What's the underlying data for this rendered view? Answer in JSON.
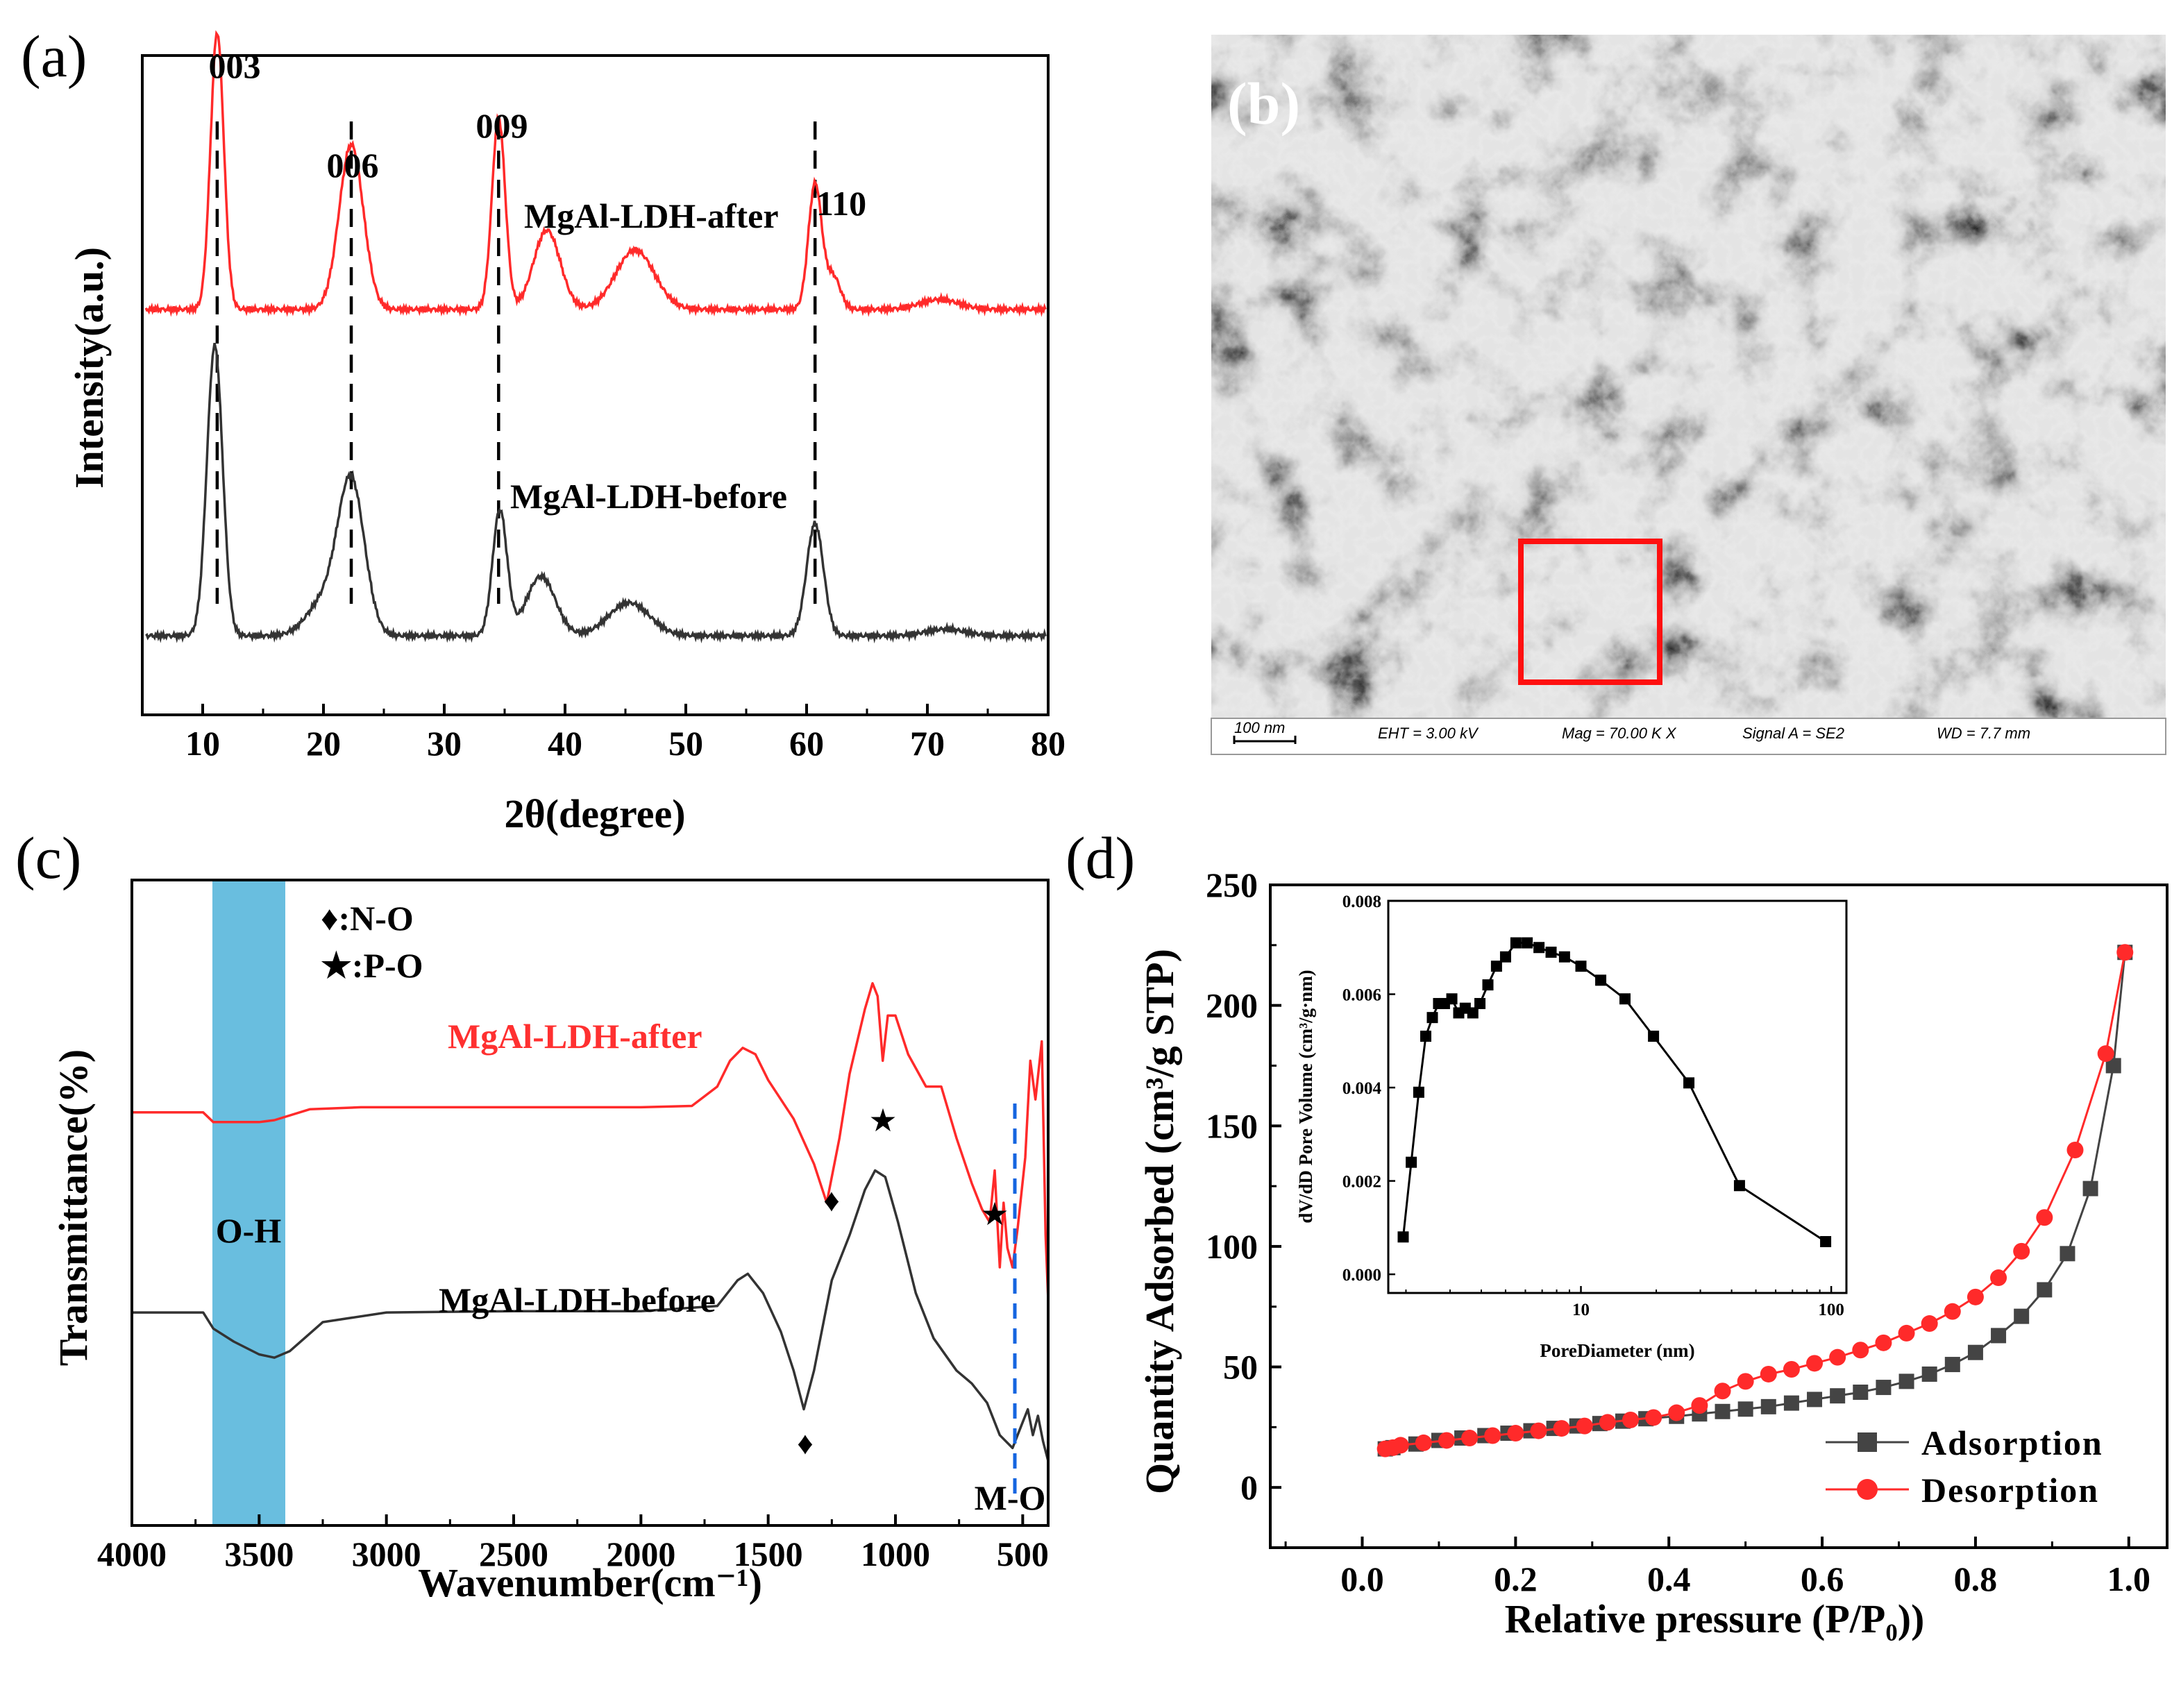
{
  "chart_data": [
    {
      "panel": "(a)",
      "type": "line",
      "xlabel": "2θ(degree)",
      "ylabel": "Intensity(a.u.)",
      "xlim": [
        5,
        80
      ],
      "xticks": [
        "10",
        "20",
        "30",
        "40",
        "50",
        "60",
        "70",
        "80"
      ],
      "peak_labels": [
        {
          "text": "003",
          "x": 11.2
        },
        {
          "text": "006",
          "x": 22.3
        },
        {
          "text": "009",
          "x": 34.5
        },
        {
          "text": "110",
          "x": 60.7
        }
      ],
      "series": [
        {
          "name": "MgAl-LDH-after",
          "color": "#ff2a2a",
          "baseline": 0.615,
          "peaks": [
            [
              11.2,
              0.42,
              0.55
            ],
            [
              22.3,
              0.25,
              1.0
            ],
            [
              34.5,
              0.29,
              0.55
            ],
            [
              38.5,
              0.12,
              1.1
            ],
            [
              45.8,
              0.09,
              1.6
            ],
            [
              60.7,
              0.19,
              0.55
            ],
            [
              62.2,
              0.05,
              0.6
            ],
            [
              71.0,
              0.015,
              1.6
            ]
          ]
        },
        {
          "name": "MgAl-LDH-before",
          "color": "#333333",
          "baseline": 0.12,
          "peaks": [
            [
              11.0,
              0.44,
              0.65
            ],
            [
              20.0,
              0.05,
              1.4
            ],
            [
              22.3,
              0.23,
              1.1
            ],
            [
              34.6,
              0.19,
              0.6
            ],
            [
              38.0,
              0.09,
              1.2
            ],
            [
              45.3,
              0.05,
              1.7
            ],
            [
              60.7,
              0.17,
              0.7
            ],
            [
              71.5,
              0.01,
              1.6
            ]
          ]
        }
      ]
    },
    {
      "panel": "(b)",
      "type": "image",
      "scale_bar": "100 nm",
      "info": [
        "EHT =  3.00 kV",
        "Mag =   70.00 K X",
        "Signal A = SE2",
        "WD =  7.7 mm"
      ]
    },
    {
      "panel": "(c)",
      "type": "line",
      "xlabel": "Wavenumber(cm⁻¹)",
      "ylabel": "Transmittance(%)",
      "xlim": [
        4000,
        400
      ],
      "xticks": [
        "4000",
        "3500",
        "3000",
        "2500",
        "2000",
        "1500",
        "1000",
        "500"
      ],
      "band_label": "O-H",
      "band_range": [
        3700,
        3420
      ],
      "marker_legend": [
        "♦:N-O",
        "★:P-O"
      ],
      "mo_label": "M-O",
      "mo_line_x": 540,
      "series": [
        {
          "name": "MgAl-LDH-after",
          "color": "#ff2a2a",
          "points": [
            [
              4000,
              0.64
            ],
            [
              3720,
              0.64
            ],
            [
              3680,
              0.625
            ],
            [
              3600,
              0.625
            ],
            [
              3500,
              0.625
            ],
            [
              3440,
              0.628
            ],
            [
              3300,
              0.645
            ],
            [
              3100,
              0.648
            ],
            [
              2800,
              0.648
            ],
            [
              2400,
              0.648
            ],
            [
              2000,
              0.648
            ],
            [
              1800,
              0.65
            ],
            [
              1700,
              0.68
            ],
            [
              1650,
              0.72
            ],
            [
              1600,
              0.74
            ],
            [
              1550,
              0.73
            ],
            [
              1500,
              0.69
            ],
            [
              1400,
              0.63
            ],
            [
              1320,
              0.56
            ],
            [
              1270,
              0.5
            ],
            [
              1220,
              0.6
            ],
            [
              1180,
              0.7
            ],
            [
              1120,
              0.8
            ],
            [
              1090,
              0.84
            ],
            [
              1070,
              0.82
            ],
            [
              1050,
              0.72
            ],
            [
              1030,
              0.79
            ],
            [
              1000,
              0.79
            ],
            [
              950,
              0.73
            ],
            [
              880,
              0.68
            ],
            [
              820,
              0.68
            ],
            [
              760,
              0.6
            ],
            [
              700,
              0.53
            ],
            [
              660,
              0.49
            ],
            [
              630,
              0.47
            ],
            [
              610,
              0.55
            ],
            [
              590,
              0.4
            ],
            [
              575,
              0.5
            ],
            [
              560,
              0.43
            ],
            [
              540,
              0.4
            ],
            [
              520,
              0.46
            ],
            [
              490,
              0.57
            ],
            [
              470,
              0.72
            ],
            [
              450,
              0.66
            ],
            [
              425,
              0.75
            ],
            [
              410,
              0.45
            ],
            [
              400,
              0.35
            ]
          ]
        },
        {
          "name": "MgAl-LDH-before",
          "color": "#333333",
          "points": [
            [
              4000,
              0.33
            ],
            [
              3720,
              0.33
            ],
            [
              3680,
              0.305
            ],
            [
              3600,
              0.285
            ],
            [
              3500,
              0.265
            ],
            [
              3440,
              0.26
            ],
            [
              3380,
              0.27
            ],
            [
              3250,
              0.315
            ],
            [
              3000,
              0.33
            ],
            [
              2500,
              0.332
            ],
            [
              2000,
              0.332
            ],
            [
              1700,
              0.34
            ],
            [
              1620,
              0.38
            ],
            [
              1580,
              0.39
            ],
            [
              1520,
              0.36
            ],
            [
              1450,
              0.3
            ],
            [
              1400,
              0.24
            ],
            [
              1360,
              0.18
            ],
            [
              1320,
              0.24
            ],
            [
              1250,
              0.38
            ],
            [
              1180,
              0.45
            ],
            [
              1120,
              0.52
            ],
            [
              1080,
              0.55
            ],
            [
              1040,
              0.54
            ],
            [
              990,
              0.47
            ],
            [
              920,
              0.36
            ],
            [
              850,
              0.29
            ],
            [
              760,
              0.24
            ],
            [
              700,
              0.22
            ],
            [
              640,
              0.19
            ],
            [
              590,
              0.14
            ],
            [
              540,
              0.12
            ],
            [
              500,
              0.16
            ],
            [
              480,
              0.18
            ],
            [
              460,
              0.14
            ],
            [
              440,
              0.17
            ],
            [
              420,
              0.13
            ],
            [
              400,
              0.1
            ]
          ]
        }
      ]
    },
    {
      "panel": "(d)",
      "type": "line",
      "xlabel": "Relative pressure (P/P₀))",
      "ylabel": "Quantity Adsorbed (cm³/g STP)",
      "xlim": [
        -0.12,
        1.05
      ],
      "ylim": [
        -25,
        250
      ],
      "xticks": [
        "0.0",
        "0.2",
        "0.4",
        "0.6",
        "0.8",
        "1.0"
      ],
      "yticks": [
        "0",
        "50",
        "100",
        "150",
        "200",
        "250"
      ],
      "series": [
        {
          "name": "Adsorption",
          "color": "#444444",
          "marker": "square",
          "x": [
            0.03,
            0.04,
            0.07,
            0.1,
            0.13,
            0.16,
            0.19,
            0.22,
            0.25,
            0.28,
            0.31,
            0.34,
            0.37,
            0.41,
            0.44,
            0.47,
            0.5,
            0.53,
            0.56,
            0.59,
            0.62,
            0.65,
            0.68,
            0.71,
            0.74,
            0.77,
            0.8,
            0.83,
            0.86,
            0.89,
            0.92,
            0.95,
            0.98,
            0.995
          ],
          "y": [
            16,
            16.5,
            18,
            19.5,
            20.5,
            21.5,
            22.5,
            23.5,
            24.5,
            25.5,
            26.5,
            27.5,
            28.5,
            29.5,
            30.5,
            31.5,
            32.5,
            33.5,
            35,
            36.5,
            38,
            39.5,
            41.5,
            44,
            47,
            51,
            56,
            63,
            71,
            82,
            97,
            124,
            175,
            222
          ]
        },
        {
          "name": "Desorption",
          "color": "#ff2a2a",
          "marker": "circle",
          "x": [
            0.995,
            0.97,
            0.93,
            0.89,
            0.86,
            0.83,
            0.8,
            0.77,
            0.74,
            0.71,
            0.68,
            0.65,
            0.62,
            0.59,
            0.56,
            0.53,
            0.5,
            0.47,
            0.44,
            0.41,
            0.38,
            0.35,
            0.32,
            0.29,
            0.26,
            0.23,
            0.2,
            0.17,
            0.14,
            0.11,
            0.08,
            0.05,
            0.04,
            0.03
          ],
          "y": [
            222,
            180,
            140,
            112,
            98,
            87,
            79,
            73,
            68,
            64,
            60,
            57,
            54,
            51.5,
            49,
            47,
            44,
            40,
            34,
            31,
            29,
            28,
            27,
            25.5,
            24.5,
            23.5,
            22.5,
            21.5,
            20.5,
            19.5,
            18.5,
            17.5,
            16.5,
            16
          ]
        }
      ],
      "inset": {
        "type": "line",
        "xlabel": "PoreDiameter (nm)",
        "ylabel": "dV/dD Pore Volume (cm³/g·nm)",
        "xscale": "log",
        "xlim": [
          1.7,
          115
        ],
        "ylim": [
          -0.0004,
          0.008
        ],
        "xticks": [
          "10",
          "100"
        ],
        "yticks": [
          "0.000",
          "0.002",
          "0.004",
          "0.006",
          "0.008"
        ],
        "x": [
          1.95,
          2.1,
          2.25,
          2.4,
          2.55,
          2.7,
          2.85,
          3.05,
          3.25,
          3.45,
          3.7,
          3.95,
          4.25,
          4.6,
          5.0,
          5.5,
          6.1,
          6.8,
          7.6,
          8.6,
          10.0,
          12.0,
          15.0,
          19.5,
          27.0,
          43.0,
          95.0
        ],
        "y": [
          0.0008,
          0.0024,
          0.0039,
          0.0051,
          0.0055,
          0.0058,
          0.0058,
          0.0059,
          0.0056,
          0.0057,
          0.0056,
          0.0058,
          0.0062,
          0.0066,
          0.0068,
          0.0071,
          0.0071,
          0.007,
          0.0069,
          0.0068,
          0.0066,
          0.0063,
          0.0059,
          0.0051,
          0.0041,
          0.0019,
          0.0007
        ]
      }
    }
  ]
}
